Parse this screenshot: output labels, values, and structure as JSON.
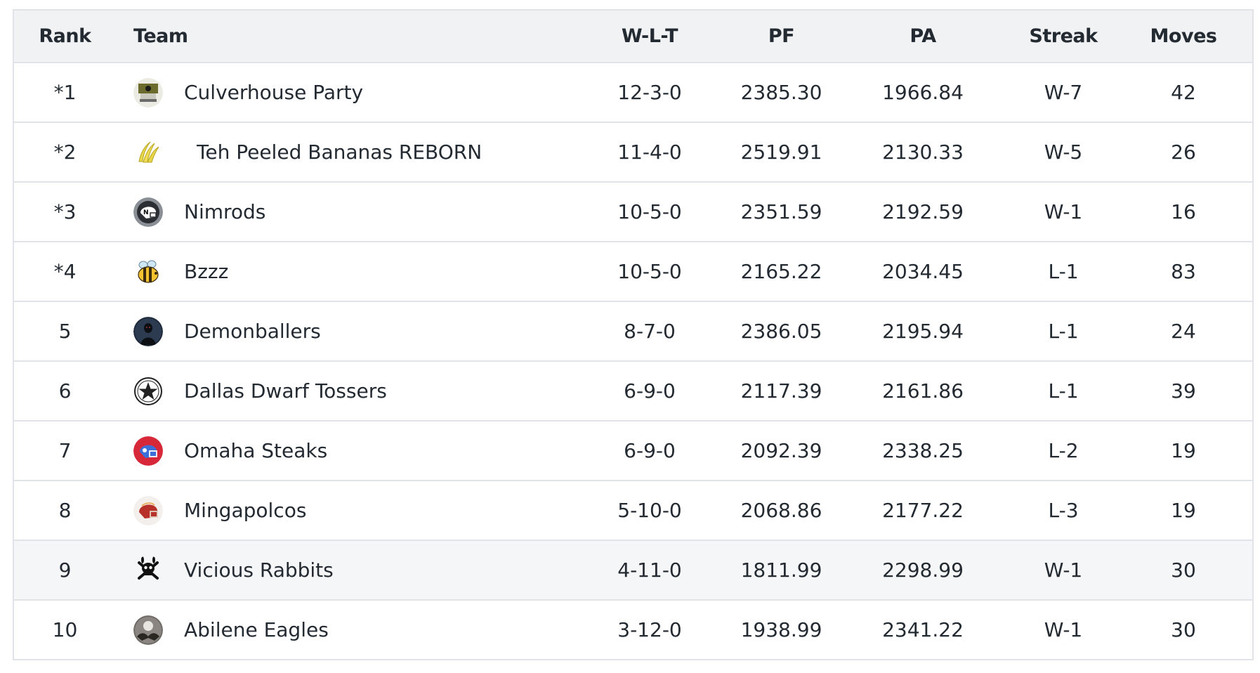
{
  "columns": {
    "rank": "Rank",
    "team": "Team",
    "wlt": "W-L-T",
    "pf": "PF",
    "pa": "PA",
    "streak": "Streak",
    "moves": "Moves"
  },
  "rows": [
    {
      "rank": "*1",
      "team": "Culverhouse Party",
      "wlt": "12-3-0",
      "pf": "2385.30",
      "pa": "1966.84",
      "streak": "W-7",
      "moves": "42",
      "logo": "green-badge-logo"
    },
    {
      "rank": "*2",
      "team": "Teh Peeled Bananas REBORN",
      "wlt": "11-4-0",
      "pf": "2519.91",
      "pa": "2130.33",
      "streak": "W-5",
      "moves": "26",
      "logo": "banana-logo"
    },
    {
      "rank": "*3",
      "team": "Nimrods",
      "wlt": "10-5-0",
      "pf": "2351.59",
      "pa": "2192.59",
      "streak": "W-1",
      "moves": "16",
      "logo": "football-helmet-logo"
    },
    {
      "rank": "*4",
      "team": "Bzzz",
      "wlt": "10-5-0",
      "pf": "2165.22",
      "pa": "2034.45",
      "streak": "L-1",
      "moves": "83",
      "logo": "bee-logo"
    },
    {
      "rank": "5",
      "team": "Demonballers",
      "wlt": "8-7-0",
      "pf": "2386.05",
      "pa": "2195.94",
      "streak": "L-1",
      "moves": "24",
      "logo": "dark-figure-logo"
    },
    {
      "rank": "6",
      "team": "Dallas Dwarf Tossers",
      "wlt": "6-9-0",
      "pf": "2117.39",
      "pa": "2161.86",
      "streak": "L-1",
      "moves": "39",
      "logo": "star-logo"
    },
    {
      "rank": "7",
      "team": "Omaha Steaks",
      "wlt": "6-9-0",
      "pf": "2092.39",
      "pa": "2338.25",
      "streak": "L-2",
      "moves": "19",
      "logo": "blue-helmet-logo"
    },
    {
      "rank": "8",
      "team": "Mingapolcos",
      "wlt": "5-10-0",
      "pf": "2068.86",
      "pa": "2177.22",
      "streak": "L-3",
      "moves": "19",
      "logo": "red-helmet-logo"
    },
    {
      "rank": "9",
      "team": "Vicious Rabbits",
      "wlt": "4-11-0",
      "pf": "1811.99",
      "pa": "2298.99",
      "streak": "W-1",
      "moves": "30",
      "logo": "skull-crossbones-logo"
    },
    {
      "rank": "10",
      "team": "Abilene Eagles",
      "wlt": "3-12-0",
      "pf": "1938.99",
      "pa": "2341.22",
      "streak": "W-1",
      "moves": "30",
      "logo": "eagle-logo"
    }
  ],
  "colors": {
    "header_bg": "#f1f2f4",
    "border": "#e0e4e9",
    "text": "#232a31",
    "shaded_row": "#f5f6f7"
  }
}
